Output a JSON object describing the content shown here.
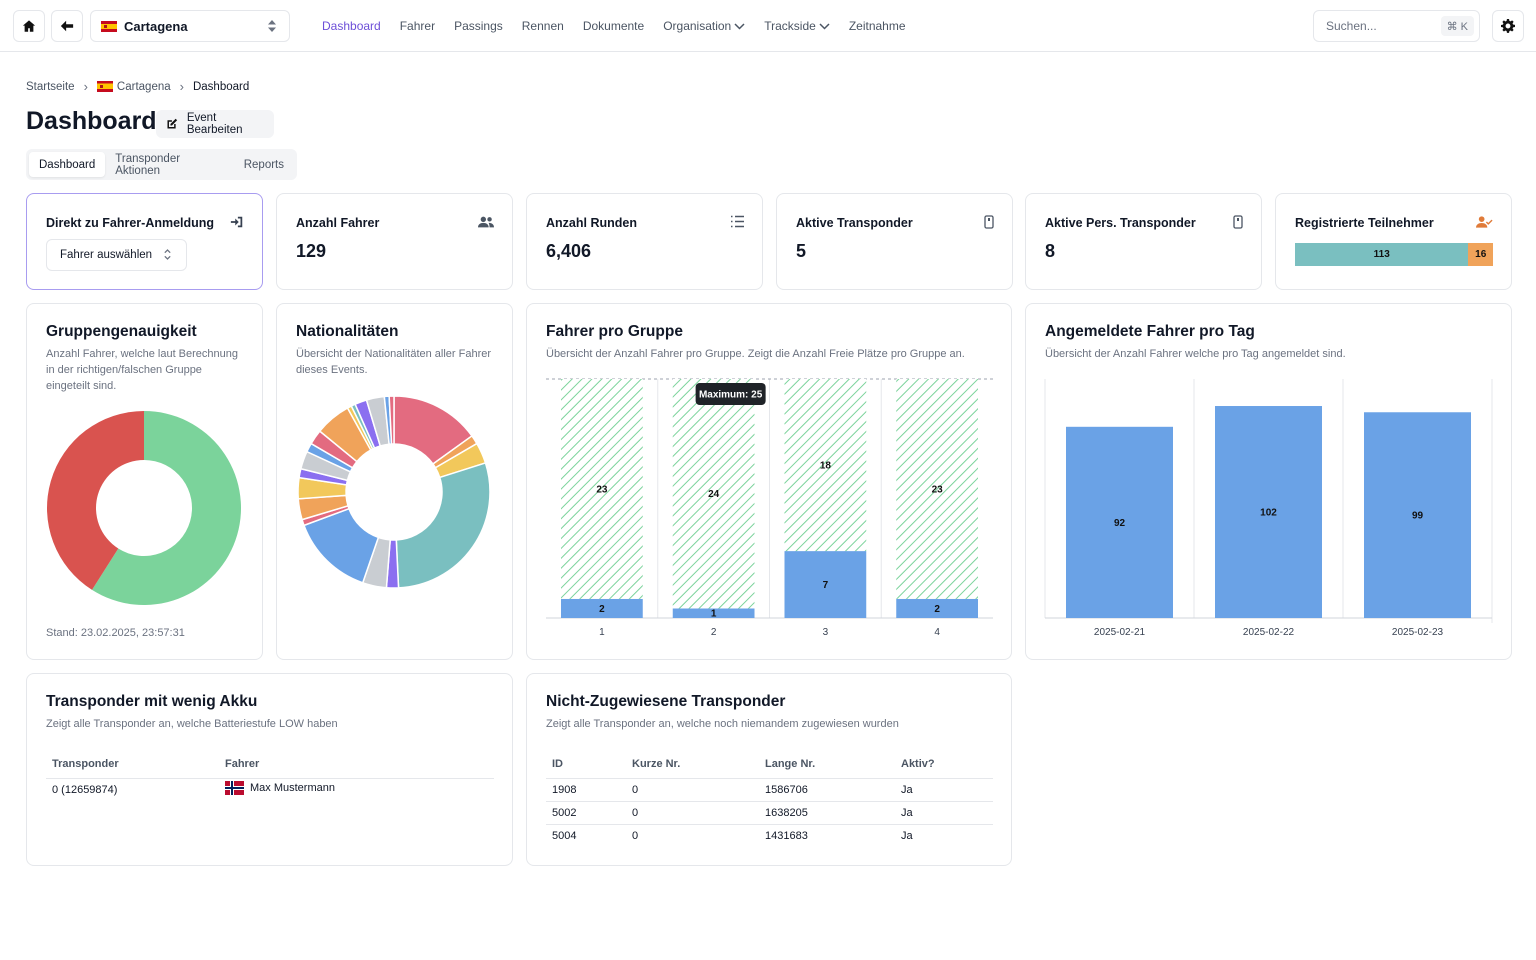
{
  "topbar": {
    "event": "Cartagena",
    "nav": [
      {
        "label": "Dashboard",
        "active": true,
        "dropdown": false
      },
      {
        "label": "Fahrer",
        "active": false,
        "dropdown": false
      },
      {
        "label": "Passings",
        "active": false,
        "dropdown": false
      },
      {
        "label": "Rennen",
        "active": false,
        "dropdown": false
      },
      {
        "label": "Dokumente",
        "active": false,
        "dropdown": false
      },
      {
        "label": "Organisation",
        "active": false,
        "dropdown": true
      },
      {
        "label": "Trackside",
        "active": false,
        "dropdown": true
      },
      {
        "label": "Zeitnahme",
        "active": false,
        "dropdown": false
      }
    ],
    "search_placeholder": "Suchen...",
    "search_shortcut": "⌘ K"
  },
  "breadcrumb": {
    "home": "Startseite",
    "event": "Cartagena",
    "current": "Dashboard"
  },
  "page_title": "Dashboard",
  "edit_button": "Event Bearbeiten",
  "tabs": [
    "Dashboard",
    "Transponder Aktionen",
    "Reports"
  ],
  "stats": {
    "direct": {
      "title": "Direkt zu Fahrer-Anmeldung",
      "select_label": "Fahrer auswählen"
    },
    "drivers": {
      "title": "Anzahl Fahrer",
      "value": "129"
    },
    "laps": {
      "title": "Anzahl Runden",
      "value": "6,406"
    },
    "active_transponders": {
      "title": "Aktive Transponder",
      "value": "5"
    },
    "active_personal": {
      "title": "Aktive Pers. Transponder",
      "value": "8"
    },
    "registered": {
      "title": "Registrierte Teilnehmer",
      "registered": "113",
      "open": "16"
    }
  },
  "group_accuracy": {
    "title": "Gruppengenauigkeit",
    "subtitle": "Anzahl Fahrer, welche laut Berechnung in der richtigen/falschen Gruppe eingeteilt sind.",
    "stand": "Stand: 23.02.2025, 23:57:31",
    "chart_data": {
      "type": "pie",
      "slices": [
        {
          "value": 59,
          "color": "#7bd39b"
        },
        {
          "value": 41,
          "color": "#d9534f"
        }
      ]
    }
  },
  "nationalities": {
    "title": "Nationalitäten",
    "subtitle": "Übersicht der Nationalitäten aller Fahrer dieses Events.",
    "chart_data": {
      "type": "pie",
      "slices": [
        {
          "value": 15,
          "color": "#e36b80"
        },
        {
          "value": 1.5,
          "color": "#f0a35a"
        },
        {
          "value": 3.5,
          "color": "#f2c85b"
        },
        {
          "value": 29,
          "color": "#7abfc0"
        },
        {
          "value": 2,
          "color": "#8b6ff0"
        },
        {
          "value": 4,
          "color": "#c9cdd2"
        },
        {
          "value": 14,
          "color": "#6aa2e6"
        },
        {
          "value": 1,
          "color": "#e36b80"
        },
        {
          "value": 3.5,
          "color": "#f0a35a"
        },
        {
          "value": 3.5,
          "color": "#f2c85b"
        },
        {
          "value": 1.5,
          "color": "#8b6ff0"
        },
        {
          "value": 3,
          "color": "#c9cdd2"
        },
        {
          "value": 1.5,
          "color": "#6aa2e6"
        },
        {
          "value": 2.5,
          "color": "#e36b80"
        },
        {
          "value": 6,
          "color": "#f0a35a"
        },
        {
          "value": 0.7,
          "color": "#f2c85b"
        },
        {
          "value": 0.7,
          "color": "#7abfc0"
        },
        {
          "value": 2,
          "color": "#8b6ff0"
        },
        {
          "value": 3,
          "color": "#c9cdd2"
        },
        {
          "value": 0.8,
          "color": "#6aa2e6"
        },
        {
          "value": 0.8,
          "color": "#e36b80"
        }
      ]
    }
  },
  "per_group": {
    "title": "Fahrer pro Gruppe",
    "subtitle": "Übersicht der Anzahl Fahrer pro Gruppe. Zeigt die Anzahl Freie Plätze pro Gruppe an.",
    "tooltip": "Maximum: 25",
    "chart_data": {
      "type": "bar",
      "categories": [
        "1",
        "2",
        "3",
        "4"
      ],
      "series": [
        {
          "values": [
            2,
            1,
            7,
            2
          ],
          "color": "#6aa2e6"
        },
        {
          "values": [
            23,
            24,
            18,
            23
          ],
          "color": "#7bd39b"
        }
      ],
      "ylim": [
        0,
        25
      ],
      "max_line": 25
    }
  },
  "per_day": {
    "title": "Angemeldete Fahrer pro Tag",
    "subtitle": "Übersicht der Anzahl Fahrer welche pro Tag angemeldet sind.",
    "chart_data": {
      "type": "bar",
      "categories": [
        "2025-02-21",
        "2025-02-22",
        "2025-02-23"
      ],
      "values": [
        92,
        102,
        99
      ],
      "ylim": [
        0,
        115
      ],
      "color": "#6aa2e6"
    }
  },
  "low_battery": {
    "title": "Transponder mit wenig Akku",
    "subtitle": "Zeigt alle Transponder an, welche Batteriestufe LOW haben",
    "columns": [
      "Transponder",
      "Fahrer"
    ],
    "rows": [
      [
        "0 (12659874)",
        "Max Mustermann"
      ]
    ]
  },
  "unassigned": {
    "title": "Nicht-Zugewiesene Transponder",
    "subtitle": "Zeigt alle Transponder an, welche noch niemandem zugewiesen wurden",
    "columns": [
      "ID",
      "Kurze Nr.",
      "Lange Nr.",
      "Aktiv?"
    ],
    "rows": [
      [
        "1908",
        "0",
        "1586706",
        "Ja"
      ],
      [
        "5002",
        "0",
        "1638205",
        "Ja"
      ],
      [
        "5004",
        "0",
        "1431683",
        "Ja"
      ]
    ]
  }
}
